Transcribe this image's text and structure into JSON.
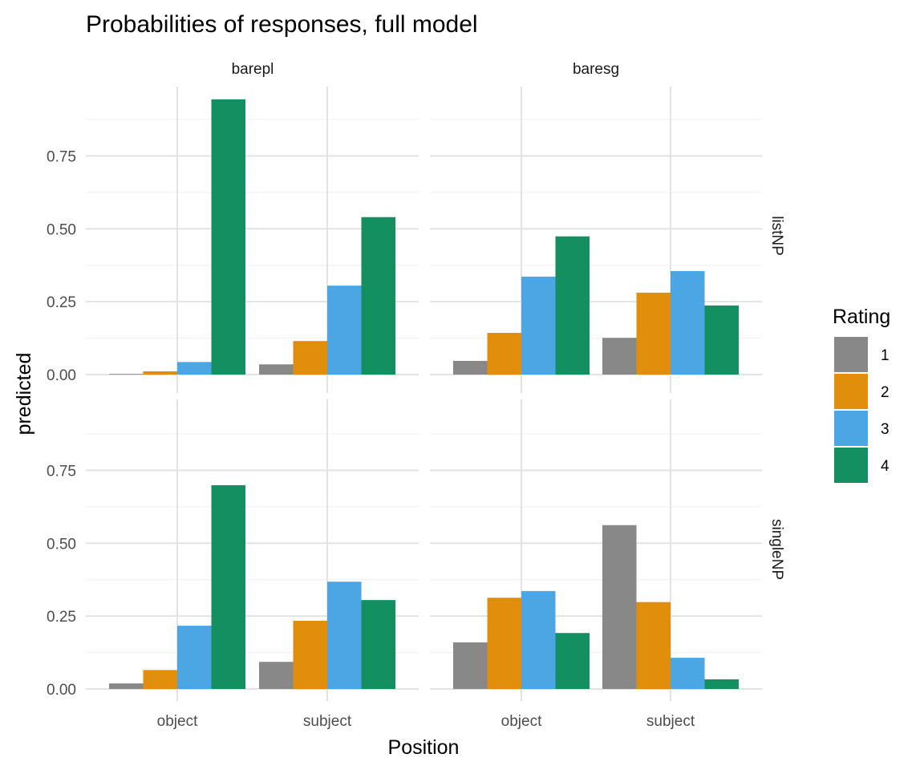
{
  "chart_data": {
    "type": "bar",
    "title": "Probabilities of responses, full model",
    "xlabel": "Position",
    "ylabel": "predicted",
    "categories": [
      "object",
      "subject"
    ],
    "ylim": [
      0,
      0.95
    ],
    "yticks": [
      "0.00",
      "0.25",
      "0.50",
      "0.75"
    ],
    "col_facets": [
      "barepl",
      "baresg"
    ],
    "row_facets": [
      "listNP",
      "singleNP"
    ],
    "legend": {
      "title": "Rating",
      "position": "right",
      "entries": [
        {
          "label": "1",
          "color": "#888888"
        },
        {
          "label": "2",
          "color": "#E08E0B"
        },
        {
          "label": "3",
          "color": "#4BA6E3"
        },
        {
          "label": "4",
          "color": "#148F61"
        }
      ]
    },
    "panels": [
      {
        "row": "listNP",
        "col": "barepl",
        "series": [
          {
            "name": "1",
            "values": [
              0.002,
              0.035
            ]
          },
          {
            "name": "2",
            "values": [
              0.011,
              0.115
            ]
          },
          {
            "name": "3",
            "values": [
              0.043,
              0.305
            ]
          },
          {
            "name": "4",
            "values": [
              0.944,
              0.54
            ]
          }
        ]
      },
      {
        "row": "listNP",
        "col": "baresg",
        "series": [
          {
            "name": "1",
            "values": [
              0.047,
              0.126
            ]
          },
          {
            "name": "2",
            "values": [
              0.143,
              0.281
            ]
          },
          {
            "name": "3",
            "values": [
              0.336,
              0.355
            ]
          },
          {
            "name": "4",
            "values": [
              0.474,
              0.237
            ]
          }
        ]
      },
      {
        "row": "singleNP",
        "col": "barepl",
        "series": [
          {
            "name": "1",
            "values": [
              0.019,
              0.093
            ]
          },
          {
            "name": "2",
            "values": [
              0.065,
              0.234
            ]
          },
          {
            "name": "3",
            "values": [
              0.217,
              0.368
            ]
          },
          {
            "name": "4",
            "values": [
              0.699,
              0.305
            ]
          }
        ]
      },
      {
        "row": "singleNP",
        "col": "baresg",
        "series": [
          {
            "name": "1",
            "values": [
              0.16,
              0.562
            ]
          },
          {
            "name": "2",
            "values": [
              0.313,
              0.298
            ]
          },
          {
            "name": "3",
            "values": [
              0.336,
              0.107
            ]
          },
          {
            "name": "4",
            "values": [
              0.192,
              0.033
            ]
          }
        ]
      }
    ],
    "grid": true
  }
}
